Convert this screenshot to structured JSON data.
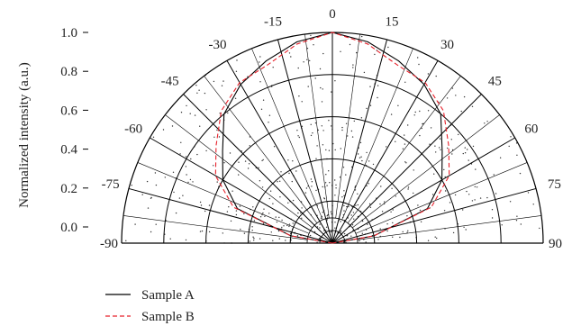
{
  "chart_data": {
    "type": "polar",
    "ylabel": "Normalized intensity (a.u.)",
    "radial_ticks": [
      "0.0",
      "0.2",
      "0.4",
      "0.6",
      "0.8",
      "1.0"
    ],
    "angle_ticks": [
      "-90",
      "-75",
      "-60",
      "-45",
      "-30",
      "-15",
      "0",
      "15",
      "30",
      "45",
      "60",
      "75",
      "90"
    ],
    "angle_tick_values": [
      -90,
      -75,
      -60,
      -45,
      -30,
      -15,
      0,
      15,
      30,
      45,
      60,
      75,
      90
    ],
    "angle_range": [
      -90,
      90
    ],
    "radial_range": [
      0,
      1.0
    ],
    "grid": true,
    "legend_position": "bottom-left",
    "series": [
      {
        "name": "Sample A",
        "style": "solid",
        "color": "#000000",
        "points": [
          {
            "angle": -90,
            "r": 0.0
          },
          {
            "angle": -80,
            "r": 0.2
          },
          {
            "angle": -70,
            "r": 0.48
          },
          {
            "angle": -60,
            "r": 0.6
          },
          {
            "angle": -50,
            "r": 0.68
          },
          {
            "angle": -40,
            "r": 0.8
          },
          {
            "angle": -30,
            "r": 0.87
          },
          {
            "angle": -20,
            "r": 0.92
          },
          {
            "angle": -10,
            "r": 0.97
          },
          {
            "angle": 0,
            "r": 1.0
          },
          {
            "angle": 10,
            "r": 0.97
          },
          {
            "angle": 20,
            "r": 0.92
          },
          {
            "angle": 30,
            "r": 0.87
          },
          {
            "angle": 40,
            "r": 0.8
          },
          {
            "angle": 50,
            "r": 0.68
          },
          {
            "angle": 60,
            "r": 0.6
          },
          {
            "angle": 70,
            "r": 0.48
          },
          {
            "angle": 80,
            "r": 0.2
          },
          {
            "angle": 90,
            "r": 0.0
          }
        ]
      },
      {
        "name": "Sample B",
        "style": "dashed",
        "color": "#e8202a",
        "points": [
          {
            "angle": -90,
            "r": 0.0
          },
          {
            "angle": -80,
            "r": 0.2
          },
          {
            "angle": -70,
            "r": 0.5
          },
          {
            "angle": -60,
            "r": 0.64
          },
          {
            "angle": -50,
            "r": 0.72
          },
          {
            "angle": -40,
            "r": 0.82
          },
          {
            "angle": -30,
            "r": 0.88
          },
          {
            "angle": -20,
            "r": 0.9
          },
          {
            "angle": -10,
            "r": 0.96
          },
          {
            "angle": 0,
            "r": 1.0
          },
          {
            "angle": 10,
            "r": 0.96
          },
          {
            "angle": 20,
            "r": 0.9
          },
          {
            "angle": 30,
            "r": 0.88
          },
          {
            "angle": 40,
            "r": 0.82
          },
          {
            "angle": 50,
            "r": 0.72
          },
          {
            "angle": 60,
            "r": 0.64
          },
          {
            "angle": 70,
            "r": 0.5
          },
          {
            "angle": 80,
            "r": 0.2
          },
          {
            "angle": 90,
            "r": 0.0
          }
        ]
      }
    ]
  }
}
